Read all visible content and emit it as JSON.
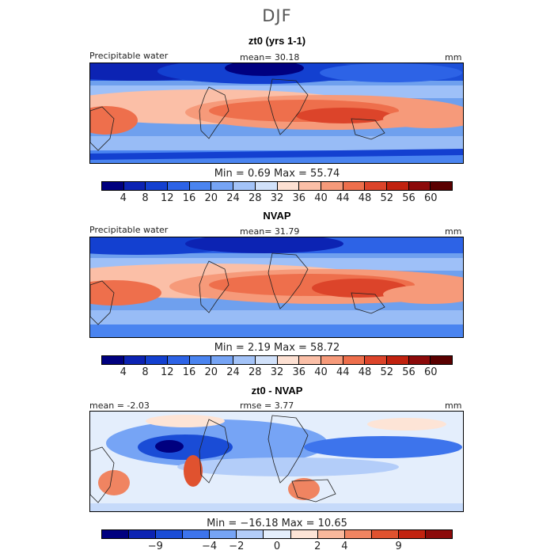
{
  "season": "DJF",
  "panels": [
    {
      "title": "zt0 (yrs 1-1)",
      "left_label": "Precipitable water",
      "center_label": "mean=  30.18",
      "units": "mm",
      "minmax": "Min =    0.69  Max =  55.74",
      "colorbar_ticks": [
        "4",
        "8",
        "12",
        "16",
        "20",
        "24",
        "28",
        "32",
        "36",
        "40",
        "44",
        "48",
        "52",
        "56",
        "60"
      ]
    },
    {
      "title": "NVAP",
      "left_label": "Precipitable water",
      "center_label": "mean=  31.79",
      "units": "mm",
      "minmax": "Min =    2.19  Max =  58.72",
      "colorbar_ticks": [
        "4",
        "8",
        "12",
        "16",
        "20",
        "24",
        "28",
        "32",
        "36",
        "40",
        "44",
        "48",
        "52",
        "56",
        "60"
      ]
    },
    {
      "title": "zt0 - NVAP",
      "left_label": "mean =  -2.03",
      "center_label": "rmse =   3.77",
      "units": "mm",
      "minmax": "Min = −16.18  Max =  10.65",
      "colorbar_ticks": [
        "−9",
        "−4",
        "−2",
        "0",
        "2",
        "4",
        "9"
      ]
    }
  ],
  "colors": {
    "abs_scale": [
      "#00007f",
      "#0c23b3",
      "#1340d0",
      "#2d63e6",
      "#4a84f0",
      "#76a4f5",
      "#a3c3f8",
      "#d1e1fa",
      "#fde0d2",
      "#fbbfa7",
      "#f69a7a",
      "#ee6f4c",
      "#dc442a",
      "#c1220f",
      "#8c0a0a",
      "#5a0000"
    ],
    "diff_scale": [
      "#00007f",
      "#0c23b3",
      "#1a4cd6",
      "#3d74ec",
      "#76a4f5",
      "#b3cdf9",
      "#e4eefc",
      "#fde4d6",
      "#f9b89c",
      "#f08461",
      "#e0522f",
      "#c1220f",
      "#8c0a0a"
    ]
  }
}
